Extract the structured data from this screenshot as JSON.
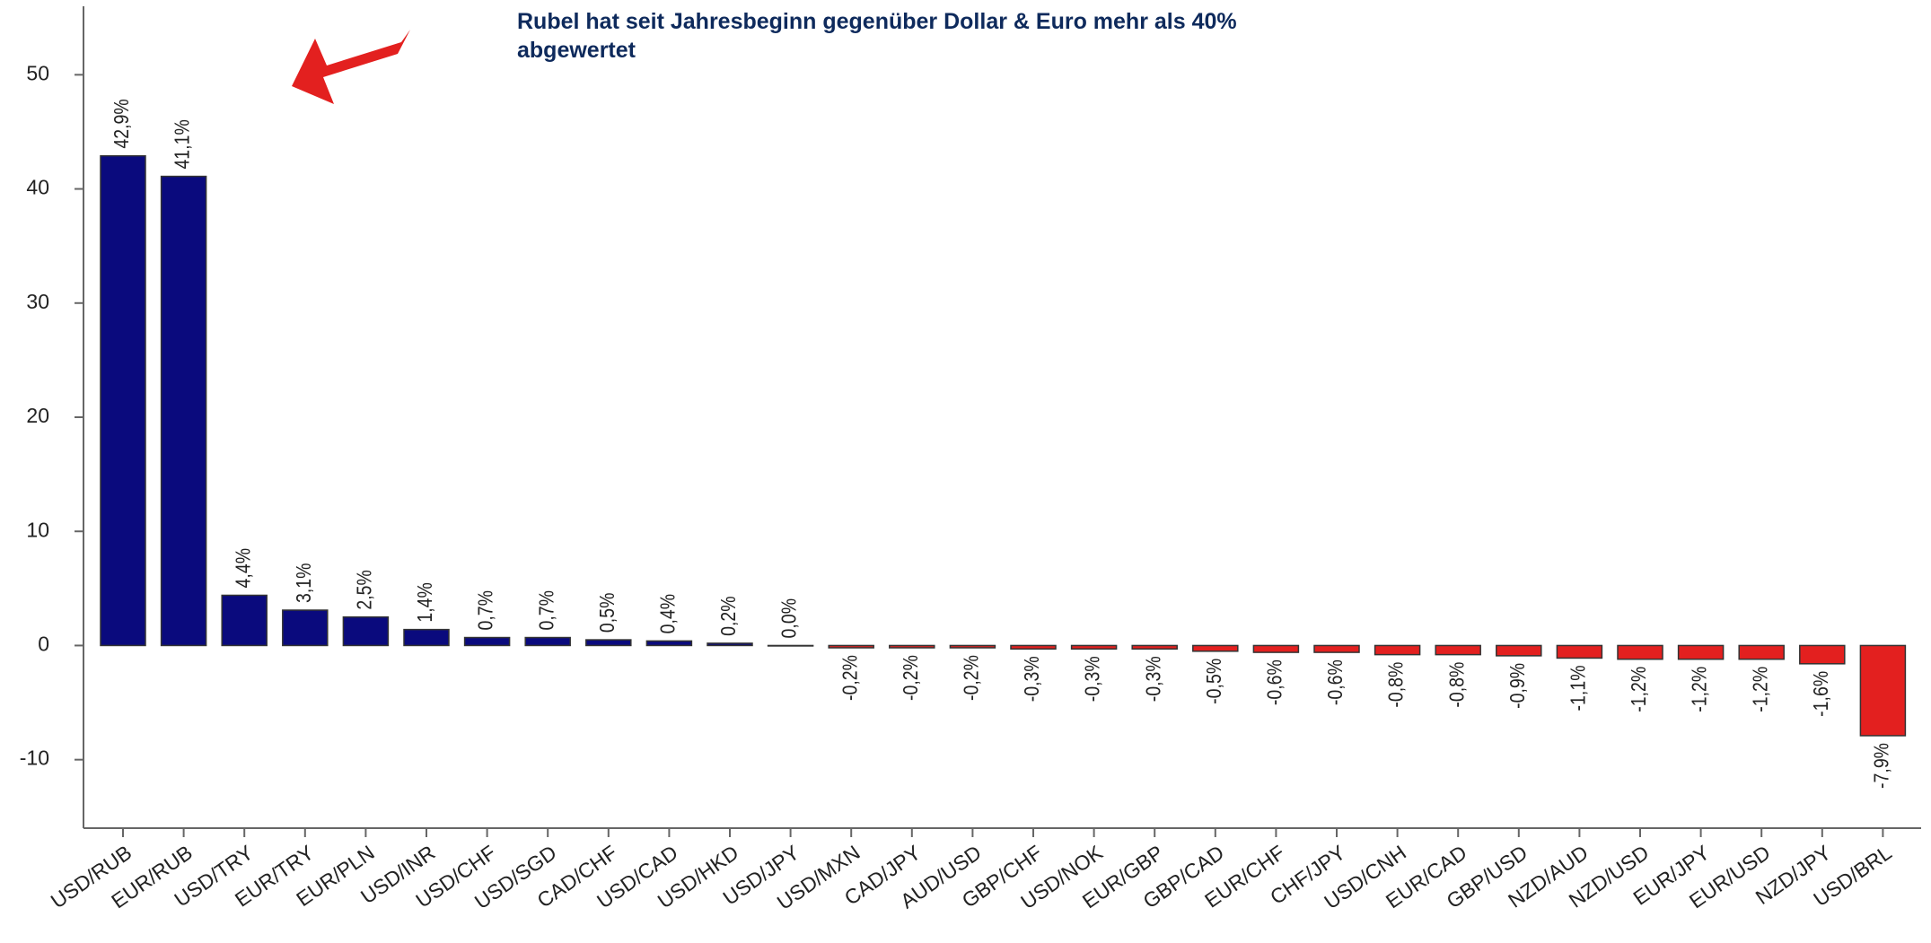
{
  "chart_data": {
    "type": "bar",
    "annotation": "Rubel hat seit Jahresbeginn gegenüber Dollar & Euro mehr als 40% abgewertet",
    "categories": [
      "USD/RUB",
      "EUR/RUB",
      "USD/TRY",
      "EUR/TRY",
      "EUR/PLN",
      "USD/INR",
      "USD/CHF",
      "USD/SGD",
      "CAD/CHF",
      "USD/CAD",
      "USD/HKD",
      "USD/JPY",
      "USD/MXN",
      "CAD/JPY",
      "AUD/USD",
      "GBP/CHF",
      "USD/NOK",
      "EUR/GBP",
      "GBP/CAD",
      "EUR/CHF",
      "CHF/JPY",
      "USD/CNH",
      "EUR/CAD",
      "GBP/USD",
      "NZD/AUD",
      "NZD/USD",
      "EUR/JPY",
      "EUR/USD",
      "NZD/JPY",
      "USD/BRL"
    ],
    "values": [
      42.9,
      41.1,
      4.4,
      3.1,
      2.5,
      1.4,
      0.7,
      0.7,
      0.5,
      0.4,
      0.2,
      0.0,
      -0.2,
      -0.2,
      -0.2,
      -0.3,
      -0.3,
      -0.3,
      -0.5,
      -0.6,
      -0.6,
      -0.8,
      -0.8,
      -0.9,
      -1.1,
      -1.2,
      -1.2,
      -1.2,
      -1.6,
      -7.9
    ],
    "value_labels": [
      "42,9%",
      "41,1%",
      "4,4%",
      "3,1%",
      "2,5%",
      "1,4%",
      "0,7%",
      "0,7%",
      "0,5%",
      "0,4%",
      "0,2%",
      "0,0%",
      "-0,2%",
      "-0,2%",
      "-0,2%",
      "-0,3%",
      "-0,3%",
      "-0,3%",
      "-0,5%",
      "-0,6%",
      "-0,6%",
      "-0,8%",
      "-0,8%",
      "-0,9%",
      "-1,1%",
      "-1,2%",
      "-1,2%",
      "-1,2%",
      "-1,6%",
      "-7,9%"
    ],
    "colors": {
      "positive": "#0a0a7d",
      "negative": "#e3201f"
    },
    "ylim": [
      -16,
      56
    ],
    "yticks": [
      -10,
      0,
      10,
      20,
      30,
      40,
      50
    ]
  }
}
